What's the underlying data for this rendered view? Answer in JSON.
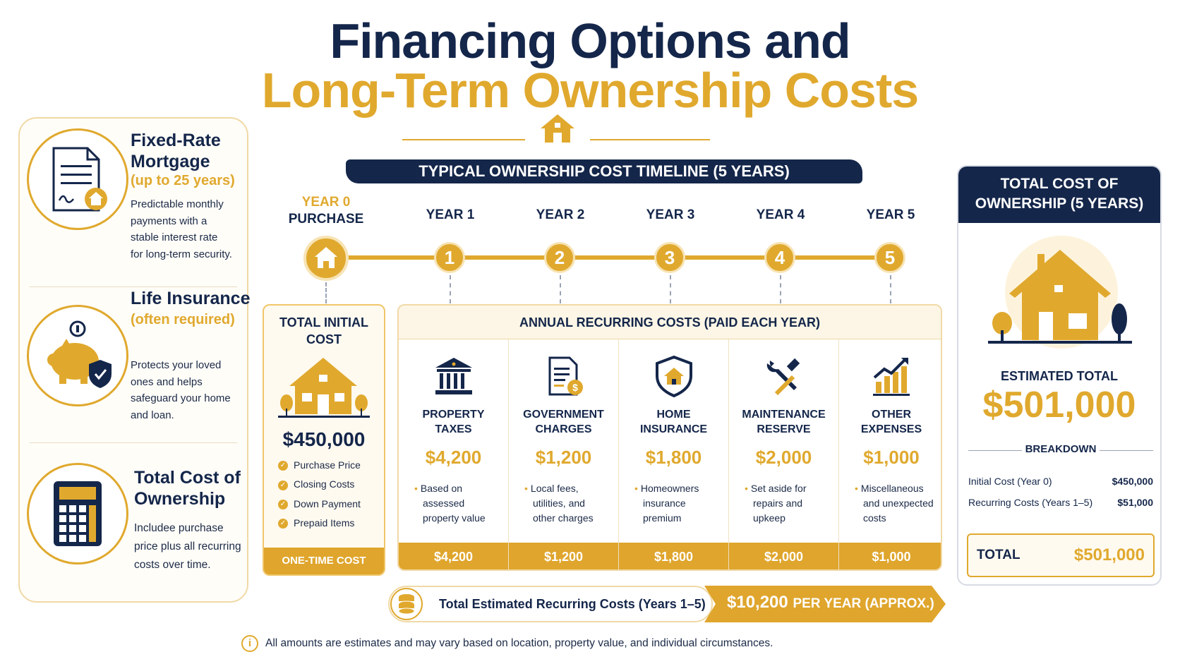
{
  "title": {
    "line1": "Financing Options and",
    "line2": "Long-Term Ownership Costs"
  },
  "options": [
    {
      "title_line1": "Fixed-Rate",
      "title_line2": "Mortgage",
      "subtitle": "(up to 25 years)",
      "desc": [
        "Predictable monthly",
        "payments with a",
        "stable interest rate",
        "for long-term security."
      ],
      "icon": "mortgage-document-icon"
    },
    {
      "title_line1": "Life Insurance",
      "subtitle": "(often required)",
      "desc": [
        "Protects your loved",
        "ones and helps",
        "safeguard your home",
        "and loan."
      ],
      "icon": "piggy-bank-shield-icon"
    },
    {
      "title_line1": "Total Cost of",
      "title_line2": "Ownership",
      "desc": [
        "Includee purchase",
        "price plus all recurring",
        "costs over time."
      ],
      "icon": "calculator-icon"
    }
  ],
  "timeline": {
    "banner": "TYPICAL OWNERSHIP COST TIMELINE (5 YEARS)",
    "year0": {
      "line1": "YEAR 0",
      "line2": "PURCHASE"
    },
    "years": [
      {
        "label": "YEAR 1",
        "num": "1"
      },
      {
        "label": "YEAR 2",
        "num": "2"
      },
      {
        "label": "YEAR 3",
        "num": "3"
      },
      {
        "label": "YEAR 4",
        "num": "4"
      },
      {
        "label": "YEAR 5",
        "num": "5"
      }
    ]
  },
  "initial": {
    "title_line1": "TOTAL INITIAL",
    "title_line2": "COST",
    "amount": "$450,000",
    "items": [
      "Purchase Price",
      "Closing Costs",
      "Down Payment",
      "Prepaid Items"
    ],
    "footer": "ONE-TIME COST"
  },
  "recurring": {
    "header": "ANNUAL RECURRING COSTS (PAID EACH YEAR)",
    "items": [
      {
        "title1": "PROPERTY",
        "title2": "TAXES",
        "amount": "$4,200",
        "desc": [
          "Based on",
          "assessed",
          "property value"
        ],
        "footer": "$4,200",
        "icon": "bank-building-icon"
      },
      {
        "title1": "GOVERNMENT",
        "title2": "CHARGES",
        "amount": "$1,200",
        "desc": [
          "Local fees,",
          "utilities, and",
          "other charges"
        ],
        "footer": "$1,200",
        "icon": "document-dollar-icon"
      },
      {
        "title1": "HOME",
        "title2": "INSURANCE",
        "amount": "$1,800",
        "desc": [
          "Homeowners",
          "insurance",
          "premium"
        ],
        "footer": "$1,800",
        "icon": "shield-home-icon"
      },
      {
        "title1": "MAINTENANCE",
        "title2": "RESERVE",
        "amount": "$2,000",
        "desc": [
          "Set aside for",
          "repairs and",
          "upkeep"
        ],
        "footer": "$2,000",
        "icon": "tools-icon"
      },
      {
        "title1": "OTHER",
        "title2": "EXPENSES",
        "amount": "$1,000",
        "desc": [
          "Miscellaneous",
          "and unexpected",
          "costs"
        ],
        "footer": "$1,000",
        "icon": "growth-chart-icon"
      }
    ]
  },
  "summary": {
    "label": "Total Estimated Recurring Costs (Years 1–5)",
    "value": "$10,200",
    "suffix": "PER YEAR (APPROX.)"
  },
  "note": "All amounts are estimates and may vary based on location, property value, and individual circumstances.",
  "total": {
    "head1": "TOTAL COST OF",
    "head2": "OWNERSHIP (5 YEARS)",
    "est_label": "ESTIMATED TOTAL",
    "est_value": "$501,000",
    "breakdown_label": "BREAKDOWN",
    "rows": [
      {
        "label": "Initial Cost (Year 0)",
        "value": "$450,000"
      },
      {
        "label": "Recurring Costs (Years 1–5)",
        "value": "$51,000"
      }
    ],
    "total_label": "TOTAL",
    "total_value": "$501,000"
  },
  "colors": {
    "navy": "#14264a",
    "gold": "#e0a92e"
  }
}
